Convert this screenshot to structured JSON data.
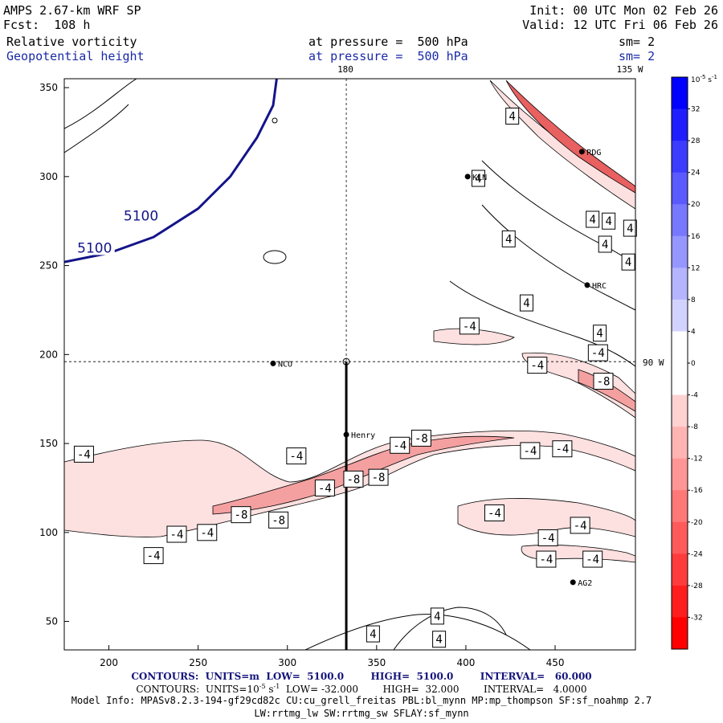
{
  "header": {
    "model": "AMPS 2.67-km WRF SP",
    "forecast": "Fcst:  108 h",
    "init": "Init: 00 UTC Mon 02 Feb 26",
    "valid": "Valid: 12 UTC Fri 06 Feb 26",
    "field1": "Relative vorticity",
    "field1_level": "at pressure =  500 hPa",
    "field1_sm": "sm= 2",
    "field2": "Geopotential height",
    "field2_level": "at pressure =  500 hPa",
    "field2_sm": "sm= 2"
  },
  "colors": {
    "height_contour": "#14148a",
    "vort_line": "#000000",
    "neg_fill_light": "#fde0e0",
    "neg_fill_mid": "#f4a0a0",
    "neg_fill_dark": "#e86060",
    "colorbar_blue": "#0000ff",
    "colorbar_red": "#ff0000"
  },
  "chart_data": {
    "type": "contour",
    "xlim": [
      175,
      495
    ],
    "ylim": [
      34,
      355
    ],
    "x_ticks": [
      200,
      250,
      300,
      350,
      400,
      450
    ],
    "y_ticks": [
      50,
      100,
      150,
      200,
      250,
      300,
      350
    ],
    "grid_labels": {
      "lon_180": "180",
      "lon_135w": "135 W",
      "lat_90w": "90 W"
    },
    "gridlines": {
      "vertical_x": 333,
      "horizontal_y": 196
    },
    "cross_section": {
      "x": 333,
      "y_start": 34,
      "y_end": 196
    },
    "stations": [
      {
        "name": "NCO",
        "x": 292,
        "y": 195
      },
      {
        "name": "Henry",
        "x": 333,
        "y": 155
      },
      {
        "name": "KLN",
        "x": 401,
        "y": 300
      },
      {
        "name": "RDG",
        "x": 465,
        "y": 314
      },
      {
        "name": "HRC",
        "x": 468,
        "y": 239
      },
      {
        "name": "AG2",
        "x": 460,
        "y": 72
      }
    ],
    "height_contours": [
      {
        "value": 5100,
        "label": "5100",
        "points": [
          [
            175,
            252
          ],
          [
            200,
            257
          ],
          [
            225,
            266
          ],
          [
            250,
            282
          ],
          [
            268,
            300
          ],
          [
            283,
            322
          ],
          [
            292,
            340
          ],
          [
            294,
            355
          ]
        ]
      }
    ],
    "height_labels": [
      {
        "text": "5100",
        "x": 218,
        "y": 278
      },
      {
        "text": "5100",
        "x": 192,
        "y": 260
      }
    ],
    "vorticity_labels": [
      {
        "text": "4",
        "x": 426,
        "y": 334
      },
      {
        "text": "4",
        "x": 424,
        "y": 265
      },
      {
        "text": "4",
        "x": 478,
        "y": 262
      },
      {
        "text": "4",
        "x": 407,
        "y": 299
      },
      {
        "text": "4",
        "x": 480,
        "y": 275
      },
      {
        "text": "4",
        "x": 471,
        "y": 276
      },
      {
        "text": "4",
        "x": 492,
        "y": 271
      },
      {
        "text": "4",
        "x": 491,
        "y": 252
      },
      {
        "text": "4",
        "x": 434,
        "y": 229
      },
      {
        "text": "4",
        "x": 475,
        "y": 212
      },
      {
        "text": "-4",
        "x": 402,
        "y": 216
      },
      {
        "text": "-4",
        "x": 474,
        "y": 201
      },
      {
        "text": "-4",
        "x": 440,
        "y": 194
      },
      {
        "text": "-8",
        "x": 477,
        "y": 185
      },
      {
        "text": "-4",
        "x": 363,
        "y": 149
      },
      {
        "text": "-8",
        "x": 375,
        "y": 153
      },
      {
        "text": "-4",
        "x": 436,
        "y": 146
      },
      {
        "text": "-4",
        "x": 454,
        "y": 147
      },
      {
        "text": "-4",
        "x": 186,
        "y": 144
      },
      {
        "text": "-4",
        "x": 305,
        "y": 143
      },
      {
        "text": "-8",
        "x": 337,
        "y": 130
      },
      {
        "text": "-8",
        "x": 351,
        "y": 131
      },
      {
        "text": "-4",
        "x": 321,
        "y": 125
      },
      {
        "text": "-8",
        "x": 274,
        "y": 110
      },
      {
        "text": "-8",
        "x": 295,
        "y": 107
      },
      {
        "text": "-4",
        "x": 238,
        "y": 99
      },
      {
        "text": "-4",
        "x": 255,
        "y": 100
      },
      {
        "text": "-4",
        "x": 416,
        "y": 111
      },
      {
        "text": "-4",
        "x": 464,
        "y": 104
      },
      {
        "text": "-4",
        "x": 446,
        "y": 97
      },
      {
        "text": "-4",
        "x": 225,
        "y": 87
      },
      {
        "text": "-4",
        "x": 445,
        "y": 85
      },
      {
        "text": "-4",
        "x": 471,
        "y": 85
      },
      {
        "text": "4",
        "x": 384,
        "y": 53
      },
      {
        "text": "4",
        "x": 348,
        "y": 43
      },
      {
        "text": "4",
        "x": 385,
        "y": 40
      }
    ],
    "colorbar": {
      "unit": "10",
      "unit_exp": "-5",
      "unit_tail": " s",
      "unit_tail_exp": "-1",
      "levels": [
        "32",
        "28",
        "24",
        "20",
        "16",
        "12",
        "8",
        "4",
        "0",
        "-4",
        "-8",
        "-12",
        "-16",
        "-20",
        "-24",
        "-28",
        "-32"
      ],
      "min": -36,
      "max": 36
    }
  },
  "footer": {
    "line1_contours": "CONTOURS:",
    "line1_units": "UNITS=m",
    "line1_low": "LOW=  5100.0",
    "line1_high": "HIGH=  5100.0",
    "line1_interval": "INTERVAL=   60.000",
    "line2_contours": "CONTOURS:",
    "line2_units_prefix": "UNITS=10",
    "line2_units_exp1": "-5",
    "line2_units_mid": " s",
    "line2_units_exp2": "-1",
    "line2_low": "LOW= -32.000",
    "line2_high": "HIGH=  32.000",
    "line2_interval": "INTERVAL=   4.0000",
    "model_info_1": "Model Info: MPASv8.2.3-194-gf29cd82c CU:cu_grell_freitas PBL:bl_mynn MP:mp_thompson SF:sf_noahmp 2.7",
    "model_info_2": "LW:rrtmg_lw SW:rrtmg_sw SFLAY:sf_mynn"
  }
}
